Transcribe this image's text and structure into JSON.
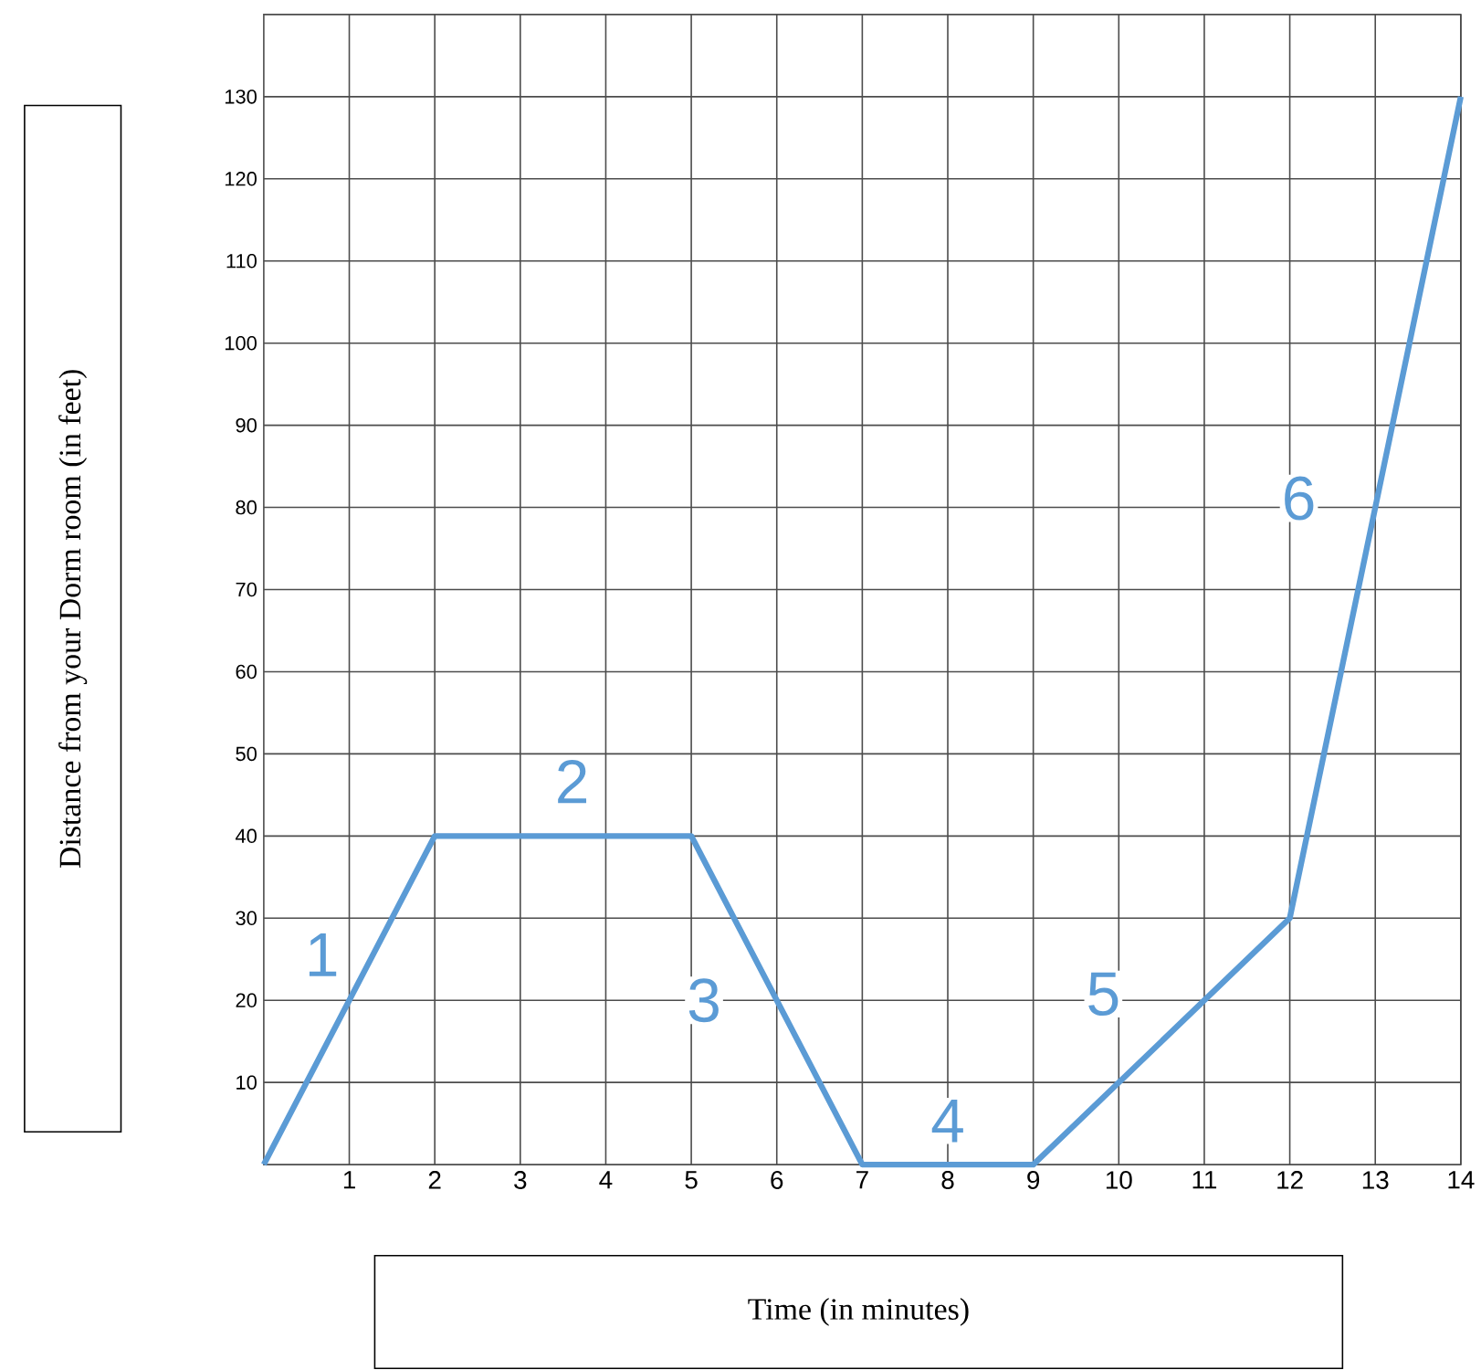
{
  "chart_data": {
    "type": "line",
    "xlabel": "Time (in minutes)",
    "ylabel": "Distance from your Dorm room (in feet)",
    "x": [
      0,
      2,
      5,
      7,
      9,
      12,
      14
    ],
    "series": [
      {
        "color": "#5b9bd5",
        "values": [
          0,
          40,
          40,
          0,
          0,
          30,
          130
        ]
      }
    ],
    "xlim": [
      0,
      14
    ],
    "ylim": [
      0,
      140
    ],
    "xticks": [
      1,
      2,
      3,
      4,
      5,
      6,
      7,
      8,
      9,
      10,
      11,
      12,
      13,
      14
    ],
    "yticks": [
      10,
      20,
      30,
      40,
      50,
      60,
      70,
      80,
      90,
      100,
      110,
      120,
      130
    ],
    "grid": true,
    "marker": "none",
    "line_style": "solid",
    "annotations": [
      "1",
      "2",
      "3",
      "4",
      "5",
      "6"
    ]
  }
}
